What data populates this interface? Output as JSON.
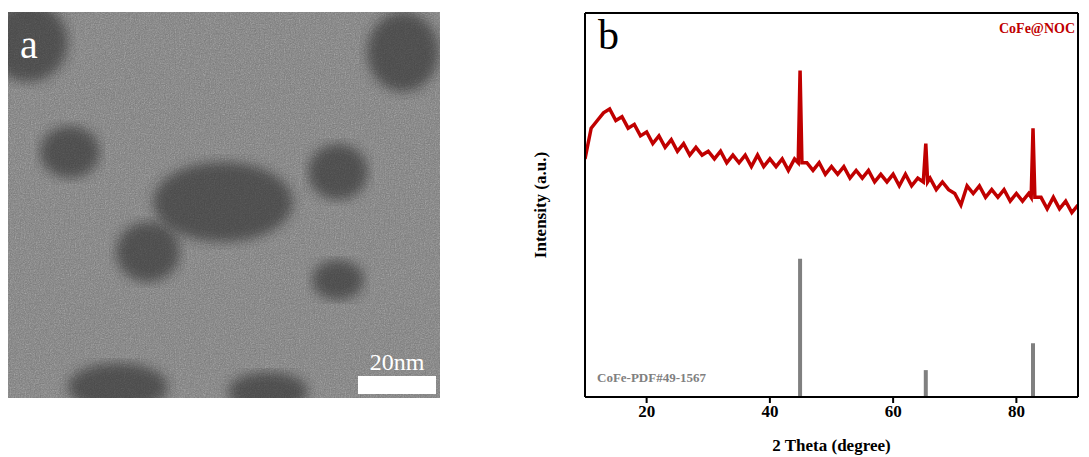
{
  "image_panel": {
    "label": "a",
    "scale_bar": "20nm"
  },
  "chart_data": {
    "type": "line",
    "panel_label": "b",
    "x_label": "2 Theta (degree)",
    "y_label": "Intensity (a.u.)",
    "xlim": [
      10,
      90
    ],
    "xticks": [
      20,
      40,
      60,
      80
    ],
    "ylim": [
      0,
      100
    ],
    "tick_labels": "x",
    "series": [
      {
        "name": "CoFe@NOC",
        "color": "#c00000",
        "type": "line",
        "x": [
          10,
          11,
          12,
          13,
          14,
          15,
          16,
          17,
          18,
          19,
          20,
          21,
          22,
          23,
          24,
          25,
          26,
          27,
          28,
          29,
          30,
          31,
          32,
          33,
          34,
          35,
          36,
          37,
          38,
          39,
          40,
          41,
          42,
          43,
          44,
          44.6,
          44.9,
          45.2,
          46,
          47,
          48,
          49,
          50,
          51,
          52,
          53,
          54,
          55,
          56,
          57,
          58,
          59,
          60,
          61,
          62,
          63,
          64,
          64.9,
          65.3,
          65.6,
          66,
          67,
          68,
          69,
          70,
          71,
          72,
          73,
          74,
          75,
          76,
          77,
          78,
          79,
          80,
          81,
          82,
          82.4,
          82.7,
          83,
          84,
          85,
          86,
          87,
          88,
          89,
          90
        ],
        "values": [
          62,
          70,
          72,
          74,
          75,
          72,
          73,
          70,
          71,
          68,
          69,
          66,
          68,
          65,
          67,
          64,
          66,
          63,
          65,
          63,
          64,
          62,
          64,
          61,
          63,
          61,
          63,
          60,
          63,
          60,
          62,
          60,
          62,
          59,
          62,
          61,
          85,
          61,
          61,
          59,
          61,
          58,
          60,
          58,
          60,
          57,
          59,
          57,
          59,
          56,
          58,
          56,
          58,
          55,
          58,
          55,
          57,
          56,
          66,
          56,
          57,
          54,
          56,
          54,
          53,
          50,
          55,
          53,
          55,
          52,
          54,
          52,
          54,
          51,
          53,
          51,
          53,
          52,
          70,
          52,
          52,
          49,
          52,
          49,
          51,
          48,
          50
        ]
      },
      {
        "name": "CoFe-PDF#49-1567",
        "color": "#808080",
        "type": "stick",
        "x": [
          44.9,
          65.3,
          82.7
        ],
        "values": [
          36,
          7,
          14
        ]
      }
    ]
  }
}
